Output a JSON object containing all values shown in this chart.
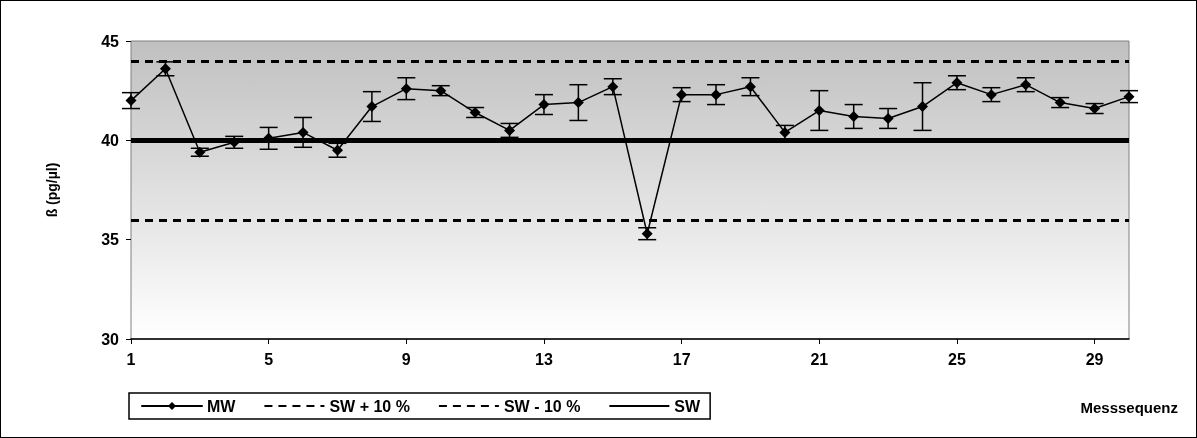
{
  "chart_data": {
    "type": "line",
    "xlabel": "Messsequenz",
    "ylabel": "ß (pg/µl)",
    "x": [
      1,
      2,
      3,
      4,
      5,
      6,
      7,
      8,
      9,
      10,
      11,
      12,
      13,
      14,
      15,
      16,
      17,
      18,
      19,
      20,
      21,
      22,
      23,
      24,
      25,
      26,
      27,
      28,
      29,
      30
    ],
    "xlim": [
      1,
      30
    ],
    "xticks": [
      1,
      5,
      9,
      13,
      17,
      21,
      25,
      29
    ],
    "ylim": [
      30,
      45
    ],
    "yticks": [
      30,
      35,
      40,
      45
    ],
    "series": [
      {
        "name": "MW",
        "color": "#000000",
        "values": [
          42.0,
          43.6,
          39.4,
          39.9,
          40.1,
          40.4,
          39.5,
          41.7,
          42.6,
          42.5,
          41.4,
          40.5,
          41.8,
          41.9,
          42.7,
          35.3,
          42.3,
          42.3,
          42.7,
          40.4,
          41.5,
          41.2,
          41.1,
          41.7,
          42.9,
          42.3,
          42.8,
          41.9,
          41.6,
          42.2
        ],
        "errors": [
          0.4,
          0.35,
          0.2,
          0.3,
          0.55,
          0.75,
          0.35,
          0.75,
          0.55,
          0.25,
          0.25,
          0.35,
          0.5,
          0.9,
          0.4,
          0.3,
          0.35,
          0.5,
          0.45,
          0.35,
          1.0,
          0.6,
          0.5,
          1.2,
          0.35,
          0.35,
          0.35,
          0.25,
          0.25,
          0.3
        ]
      }
    ],
    "ref_lines": [
      {
        "axis": "y",
        "value": 44,
        "label": "SW + 10 %",
        "color": "#000000",
        "line_style": "dashed"
      },
      {
        "axis": "y",
        "value": 36,
        "label": "SW - 10 %",
        "color": "#000000",
        "line_style": "dashed"
      },
      {
        "axis": "y",
        "value": 40,
        "label": "SW",
        "color": "#000000",
        "line_style": "solid"
      }
    ],
    "marker": "diamond",
    "line_style": "solid",
    "grid": false,
    "legend": "bottom"
  }
}
